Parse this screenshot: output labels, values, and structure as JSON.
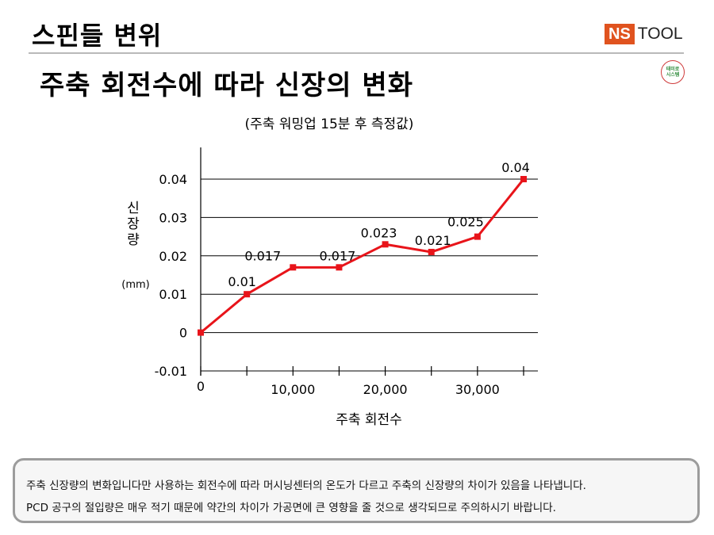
{
  "header": {
    "title": "스핀들 변위",
    "logo_ns": "NS",
    "logo_tool": "TOOL",
    "stamp_text": "태미로 시스템"
  },
  "page_title": "주축 회전수에 따라 신장의 변화",
  "note": {
    "line1": "주축 신장량의 변화입니다만 사용하는 회전수에 따라 머시닝센터의 온도가 다르고 주축의 신장량의 차이가 있음을 나타냅니다.",
    "line2": "PCD 공구의 절입량은 매우 적기 때문에 약간의 차이가 가공면에 큰 영향을 줄 것으로 생각되므로 주의하시기 바랍니다."
  },
  "colors": {
    "series": "#e8141a",
    "grid": "#000000",
    "logo_orange": "#e0531f"
  },
  "chart_data": {
    "type": "line",
    "title": "",
    "subtitle": "(주축 워밍업 15분 후 측정값)",
    "xlabel": "주축 회전수",
    "ylabel": "신장량",
    "yunit": "(mm)",
    "x": [
      0,
      5000,
      10000,
      15000,
      20000,
      25000,
      30000,
      35000
    ],
    "y": [
      0,
      0.01,
      0.017,
      0.017,
      0.023,
      0.021,
      0.025,
      0.04
    ],
    "point_labels": [
      "",
      "0.01",
      "0.017",
      "0.017",
      "0.023",
      "0.021",
      "0.025",
      "0.04"
    ],
    "xlim": [
      0,
      35000
    ],
    "ylim": [
      -0.01,
      0.04
    ],
    "yticks": [
      {
        "value": -0.01,
        "label": "-0.01"
      },
      {
        "value": 0,
        "label": "0"
      },
      {
        "value": 0.01,
        "label": "0.01"
      },
      {
        "value": 0.02,
        "label": "0.02"
      },
      {
        "value": 0.03,
        "label": "0.03"
      },
      {
        "value": 0.04,
        "label": "0.04"
      }
    ],
    "xticks": [
      0,
      5000,
      10000,
      15000,
      20000,
      25000,
      30000,
      35000
    ],
    "xtick_labels": [
      {
        "value": 0,
        "label": "0"
      },
      {
        "value": 10000,
        "label": "10,000"
      },
      {
        "value": 20000,
        "label": "20,000"
      },
      {
        "value": 30000,
        "label": "30,000"
      }
    ],
    "grid": true,
    "legend": "none"
  }
}
